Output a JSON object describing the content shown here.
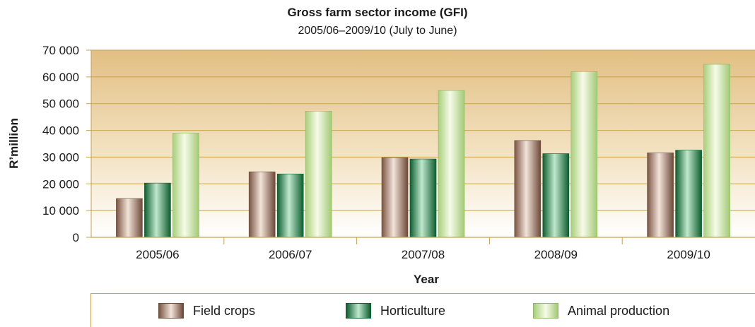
{
  "chart_data": {
    "type": "bar",
    "title": "Gross farm sector income (GFI)",
    "subtitle": "2005/06–2009/10 (July to June)",
    "xlabel": "Year",
    "ylabel": "R’million",
    "ylim": [
      0,
      70000
    ],
    "yticks": [
      0,
      10000,
      20000,
      30000,
      40000,
      50000,
      60000,
      70000
    ],
    "ytick_labels": [
      "0",
      "10 000",
      "20 000",
      "30 000",
      "40 000",
      "50 000",
      "60 000",
      "70 000"
    ],
    "categories": [
      "2005/06",
      "2006/07",
      "2007/08",
      "2008/09",
      "2009/10"
    ],
    "series": [
      {
        "name": "Field crops",
        "values": [
          14500,
          24500,
          29800,
          36200,
          31600
        ],
        "color": "#a8806a"
      },
      {
        "name": "Horticulture",
        "values": [
          20300,
          23700,
          29300,
          31300,
          32600
        ],
        "color": "#1e8a4e"
      },
      {
        "name": "Animal production",
        "values": [
          39000,
          47200,
          54900,
          62000,
          64700
        ],
        "color": "#cfe6a6"
      }
    ],
    "legend_position": "bottom",
    "background": "gradient-tan"
  }
}
